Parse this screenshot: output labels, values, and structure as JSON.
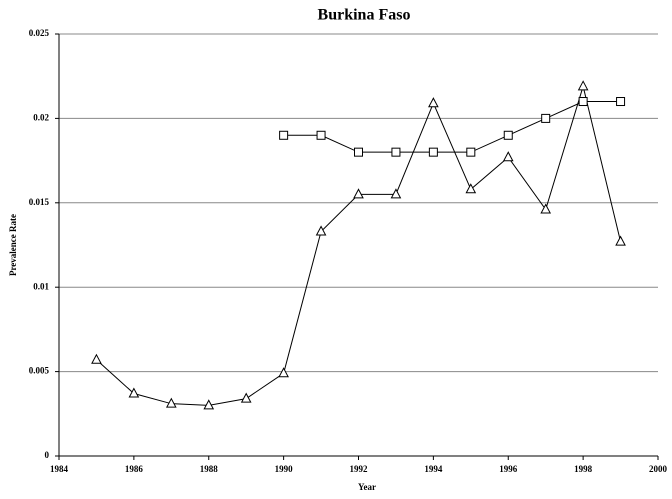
{
  "chart_data": {
    "type": "line",
    "title": "Burkina Faso",
    "xlabel": "Year",
    "ylabel": "Prevalence Rate",
    "x": [
      1985,
      1986,
      1987,
      1988,
      1989,
      1990,
      1991,
      1992,
      1993,
      1994,
      1995,
      1996,
      1997,
      1998,
      1999
    ],
    "series": [
      {
        "color": "#000000",
        "marker": "triangle",
        "values": [
          0.0057,
          0.0037,
          0.0031,
          0.003,
          0.0034,
          0.0049,
          0.0133,
          0.0155,
          0.0155,
          0.0209,
          0.0158,
          0.0177,
          0.0146,
          0.0219,
          0.0127
        ]
      },
      {
        "color": "#000000",
        "marker": "square",
        "values": [
          null,
          null,
          null,
          null,
          null,
          0.019,
          0.019,
          0.018,
          0.018,
          0.018,
          0.018,
          0.019,
          0.02,
          0.021,
          0.021
        ]
      }
    ],
    "xlim": [
      1984,
      2000
    ],
    "xticks": [
      1984,
      1986,
      1988,
      1990,
      1992,
      1994,
      1996,
      1998,
      2000
    ],
    "ylim": [
      0,
      0.025
    ],
    "yticks": [
      0,
      0.005,
      0.01,
      0.015,
      0.02,
      0.025
    ],
    "grid": true
  }
}
